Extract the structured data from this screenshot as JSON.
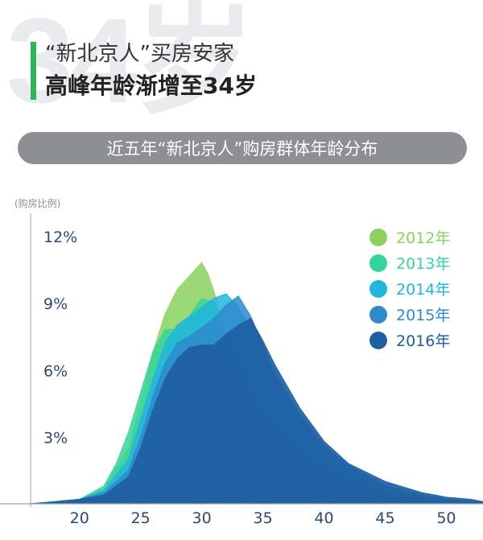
{
  "header": {
    "bg_number": "34岁",
    "line1": "“新北京人”买房安家",
    "line2": "高峰年龄渐增至34岁",
    "subtitle": "近五年“新北京人”购房群体年龄分布",
    "accent_color": "#2fb45a"
  },
  "chart_data": {
    "type": "area",
    "title": "近五年“新北京人”购房群体年龄分布",
    "ylabel": "(购房比例)",
    "xlabel": "",
    "xlim": [
      16,
      53
    ],
    "ylim": [
      0,
      13
    ],
    "xticks": [
      20,
      25,
      30,
      35,
      40,
      45,
      50
    ],
    "yticks": [
      3,
      6,
      9,
      12
    ],
    "ytick_labels": [
      "3%",
      "6%",
      "9%",
      "12%"
    ],
    "legend_position": "top-right",
    "series": [
      {
        "name": "2012年",
        "color": "#8bd15e",
        "x": [
          16,
          18,
          20,
          22,
          24,
          25,
          26,
          27,
          28,
          29,
          30,
          30.5,
          31,
          32,
          33,
          34,
          35,
          36,
          38,
          40,
          42,
          45,
          48,
          50,
          52,
          53
        ],
        "values": [
          0,
          0.1,
          0.2,
          0.7,
          2.5,
          4.5,
          6.8,
          8.5,
          9.6,
          10.2,
          10.8,
          10.3,
          9.5,
          7.5,
          5.5,
          4.3,
          3.5,
          2.9,
          2.0,
          1.3,
          0.8,
          0.4,
          0.2,
          0.1,
          0,
          0
        ]
      },
      {
        "name": "2013年",
        "color": "#36d49c",
        "x": [
          16,
          18,
          20,
          22,
          23,
          24,
          25,
          26,
          27,
          28,
          29,
          30,
          31,
          32,
          33,
          34,
          35,
          36,
          38,
          40,
          42,
          45,
          48,
          50,
          52,
          53
        ],
        "values": [
          0,
          0.1,
          0.2,
          0.8,
          1.8,
          3.2,
          5.0,
          6.8,
          7.8,
          7.8,
          8.4,
          9.2,
          9.0,
          7.6,
          6.2,
          5.2,
          4.2,
          3.5,
          2.5,
          1.7,
          1.1,
          0.5,
          0.2,
          0.1,
          0,
          0
        ]
      },
      {
        "name": "2014年",
        "color": "#22b6de",
        "x": [
          16,
          18,
          20,
          22,
          24,
          25,
          26,
          27,
          28,
          29,
          30,
          31,
          32,
          33,
          34,
          35,
          36,
          38,
          40,
          42,
          45,
          48,
          50,
          52,
          53
        ],
        "values": [
          0,
          0.1,
          0.2,
          0.6,
          2.0,
          3.8,
          5.6,
          7.2,
          8.0,
          8.4,
          8.8,
          9.2,
          9.4,
          8.8,
          7.8,
          6.4,
          5.2,
          3.6,
          2.3,
          1.4,
          0.6,
          0.3,
          0.2,
          0.1,
          0.1
        ]
      },
      {
        "name": "2015年",
        "color": "#2d8bcd",
        "x": [
          16,
          18,
          20,
          22,
          24,
          25,
          26,
          27,
          28,
          29,
          30,
          31,
          32,
          33,
          34,
          35,
          36,
          38,
          40,
          42,
          45,
          48,
          50,
          52,
          53
        ],
        "values": [
          0,
          0.1,
          0.2,
          0.5,
          1.5,
          3.0,
          4.8,
          6.3,
          7.2,
          7.5,
          7.9,
          8.3,
          8.9,
          9.3,
          8.4,
          7.1,
          5.8,
          4.0,
          2.6,
          1.7,
          0.8,
          0.4,
          0.2,
          0.1,
          0.1
        ]
      },
      {
        "name": "2016年",
        "color": "#1e5fa2",
        "x": [
          16,
          18,
          20,
          22,
          24,
          25,
          26,
          27,
          28,
          29,
          30,
          31,
          32,
          33,
          34,
          35,
          36,
          38,
          40,
          42,
          45,
          48,
          50,
          52,
          53
        ],
        "values": [
          0,
          0.1,
          0.2,
          0.4,
          1.2,
          2.5,
          4.2,
          5.6,
          6.5,
          7.0,
          7.1,
          7.1,
          7.6,
          8.0,
          8.3,
          7.3,
          6.2,
          4.3,
          2.8,
          1.8,
          1.0,
          0.5,
          0.3,
          0.2,
          0.1
        ]
      }
    ]
  }
}
